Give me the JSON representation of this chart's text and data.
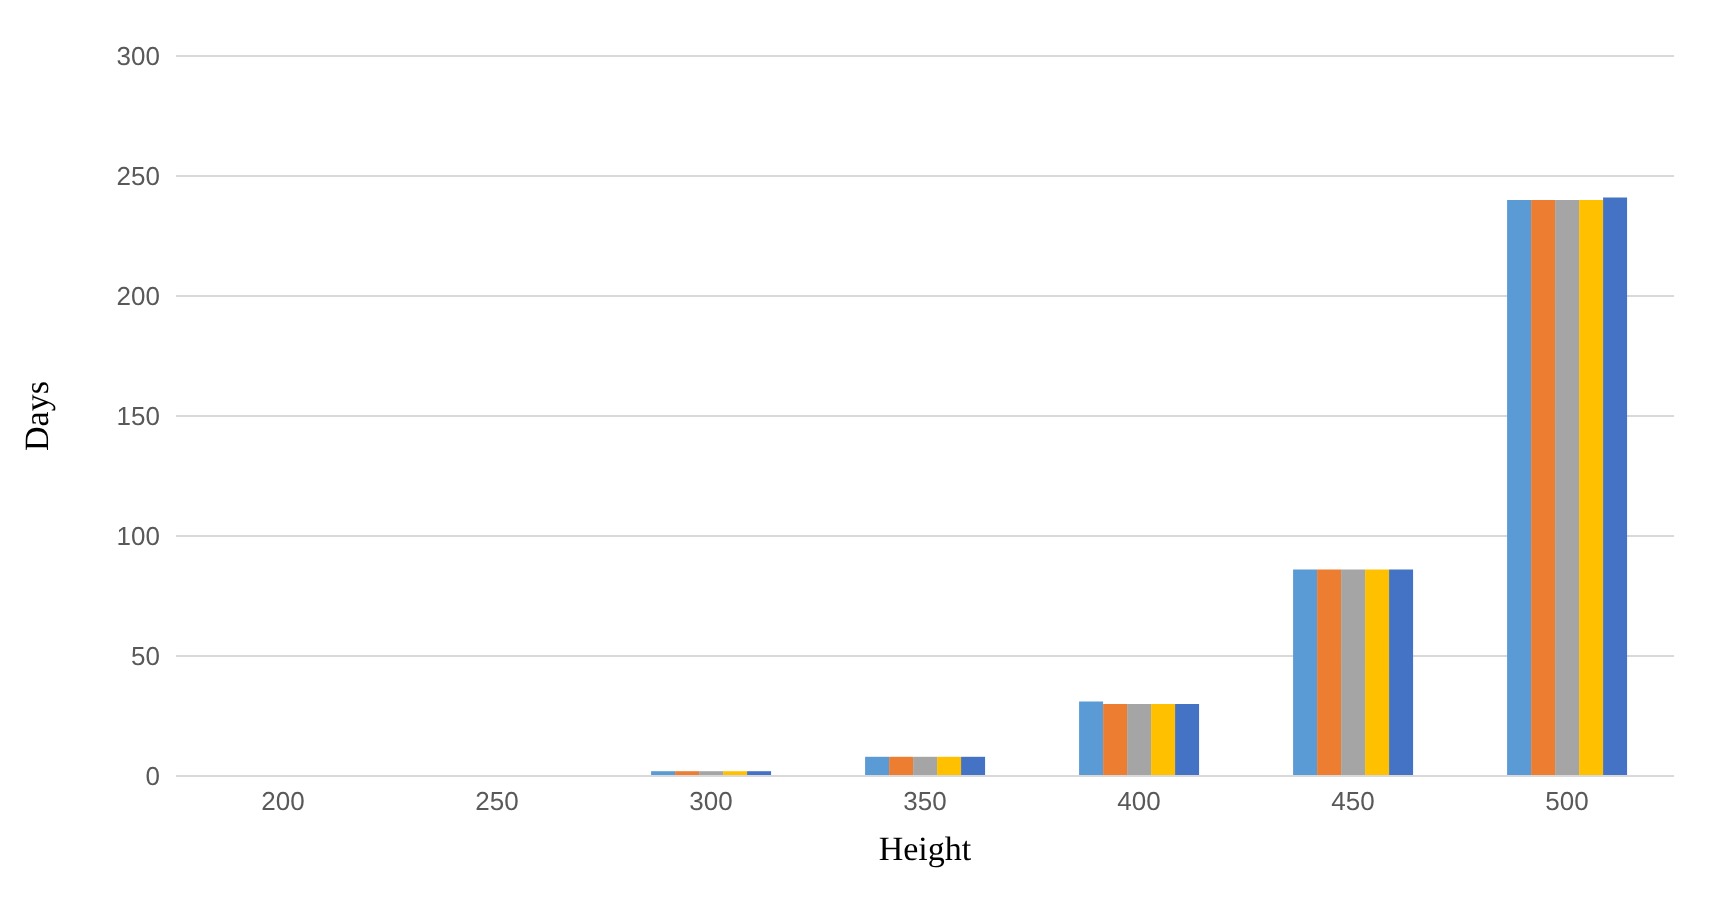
{
  "chart_data": {
    "type": "bar",
    "xlabel": "Height",
    "ylabel": "Days",
    "categories": [
      "200",
      "250",
      "300",
      "350",
      "400",
      "450",
      "500"
    ],
    "series": [
      {
        "color": "#5b9bd5",
        "values": [
          0,
          0,
          2,
          8,
          31,
          86,
          240
        ]
      },
      {
        "color": "#ed7d31",
        "values": [
          0,
          0,
          2,
          8,
          30,
          86,
          240
        ]
      },
      {
        "color": "#a5a5a5",
        "values": [
          0,
          0,
          2,
          8,
          30,
          86,
          240
        ]
      },
      {
        "color": "#ffc000",
        "values": [
          0,
          0,
          2,
          8,
          30,
          86,
          240
        ]
      },
      {
        "color": "#4472c4",
        "values": [
          0,
          0,
          2,
          8,
          30,
          86,
          241
        ]
      }
    ],
    "ylim": [
      0,
      300
    ],
    "yticks": [
      0,
      50,
      100,
      150,
      200,
      250,
      300
    ],
    "grid": "y"
  }
}
